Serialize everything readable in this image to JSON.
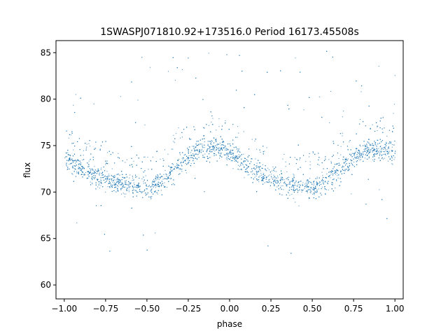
{
  "chart_data": {
    "type": "scatter",
    "title": "1SWASPJ071810.92+173516.0 Period 16173.45508s",
    "xlabel": "phase",
    "ylabel": "flux",
    "xlim": [
      -1.05,
      1.05
    ],
    "ylim": [
      58.5,
      86.3
    ],
    "x_ticks": [
      -1.0,
      -0.75,
      -0.5,
      -0.25,
      0.0,
      0.25,
      0.5,
      0.75,
      1.0
    ],
    "x_tick_labels": [
      "−1.00",
      "−0.75",
      "−0.50",
      "−0.25",
      "0.00",
      "0.25",
      "0.50",
      "0.75",
      "1.00"
    ],
    "y_ticks": [
      60,
      65,
      70,
      75,
      80,
      85
    ],
    "y_tick_labels": [
      "60",
      "65",
      "70",
      "75",
      "80",
      "85"
    ],
    "grid": false,
    "legend": "none",
    "point_color": "#1f77b4",
    "series": [
      {
        "x": [
          -1.0,
          -0.95,
          -0.9,
          -0.85,
          -0.8,
          -0.75,
          -0.7,
          -0.65,
          -0.6,
          -0.55,
          -0.5,
          -0.45,
          -0.4,
          -0.35,
          -0.3,
          -0.25,
          -0.2,
          -0.15,
          -0.1,
          -0.05,
          0.0,
          0.05,
          0.1,
          0.15,
          0.2,
          0.25,
          0.3,
          0.35,
          0.4,
          0.45,
          0.5,
          0.55,
          0.6,
          0.65,
          0.7,
          0.75,
          0.8,
          0.85,
          0.9,
          0.95,
          1.0
        ],
        "y": [
          74.0,
          73.2,
          72.7,
          72.2,
          71.8,
          71.5,
          71.2,
          70.9,
          70.7,
          70.6,
          70.6,
          70.8,
          71.3,
          72.2,
          73.2,
          74.0,
          74.5,
          74.8,
          74.9,
          74.7,
          74.2,
          73.6,
          73.0,
          72.4,
          71.9,
          71.6,
          71.2,
          70.9,
          70.7,
          70.6,
          70.6,
          70.8,
          71.3,
          72.2,
          73.2,
          73.9,
          74.3,
          74.5,
          74.6,
          74.5,
          74.3
        ]
      }
    ]
  }
}
